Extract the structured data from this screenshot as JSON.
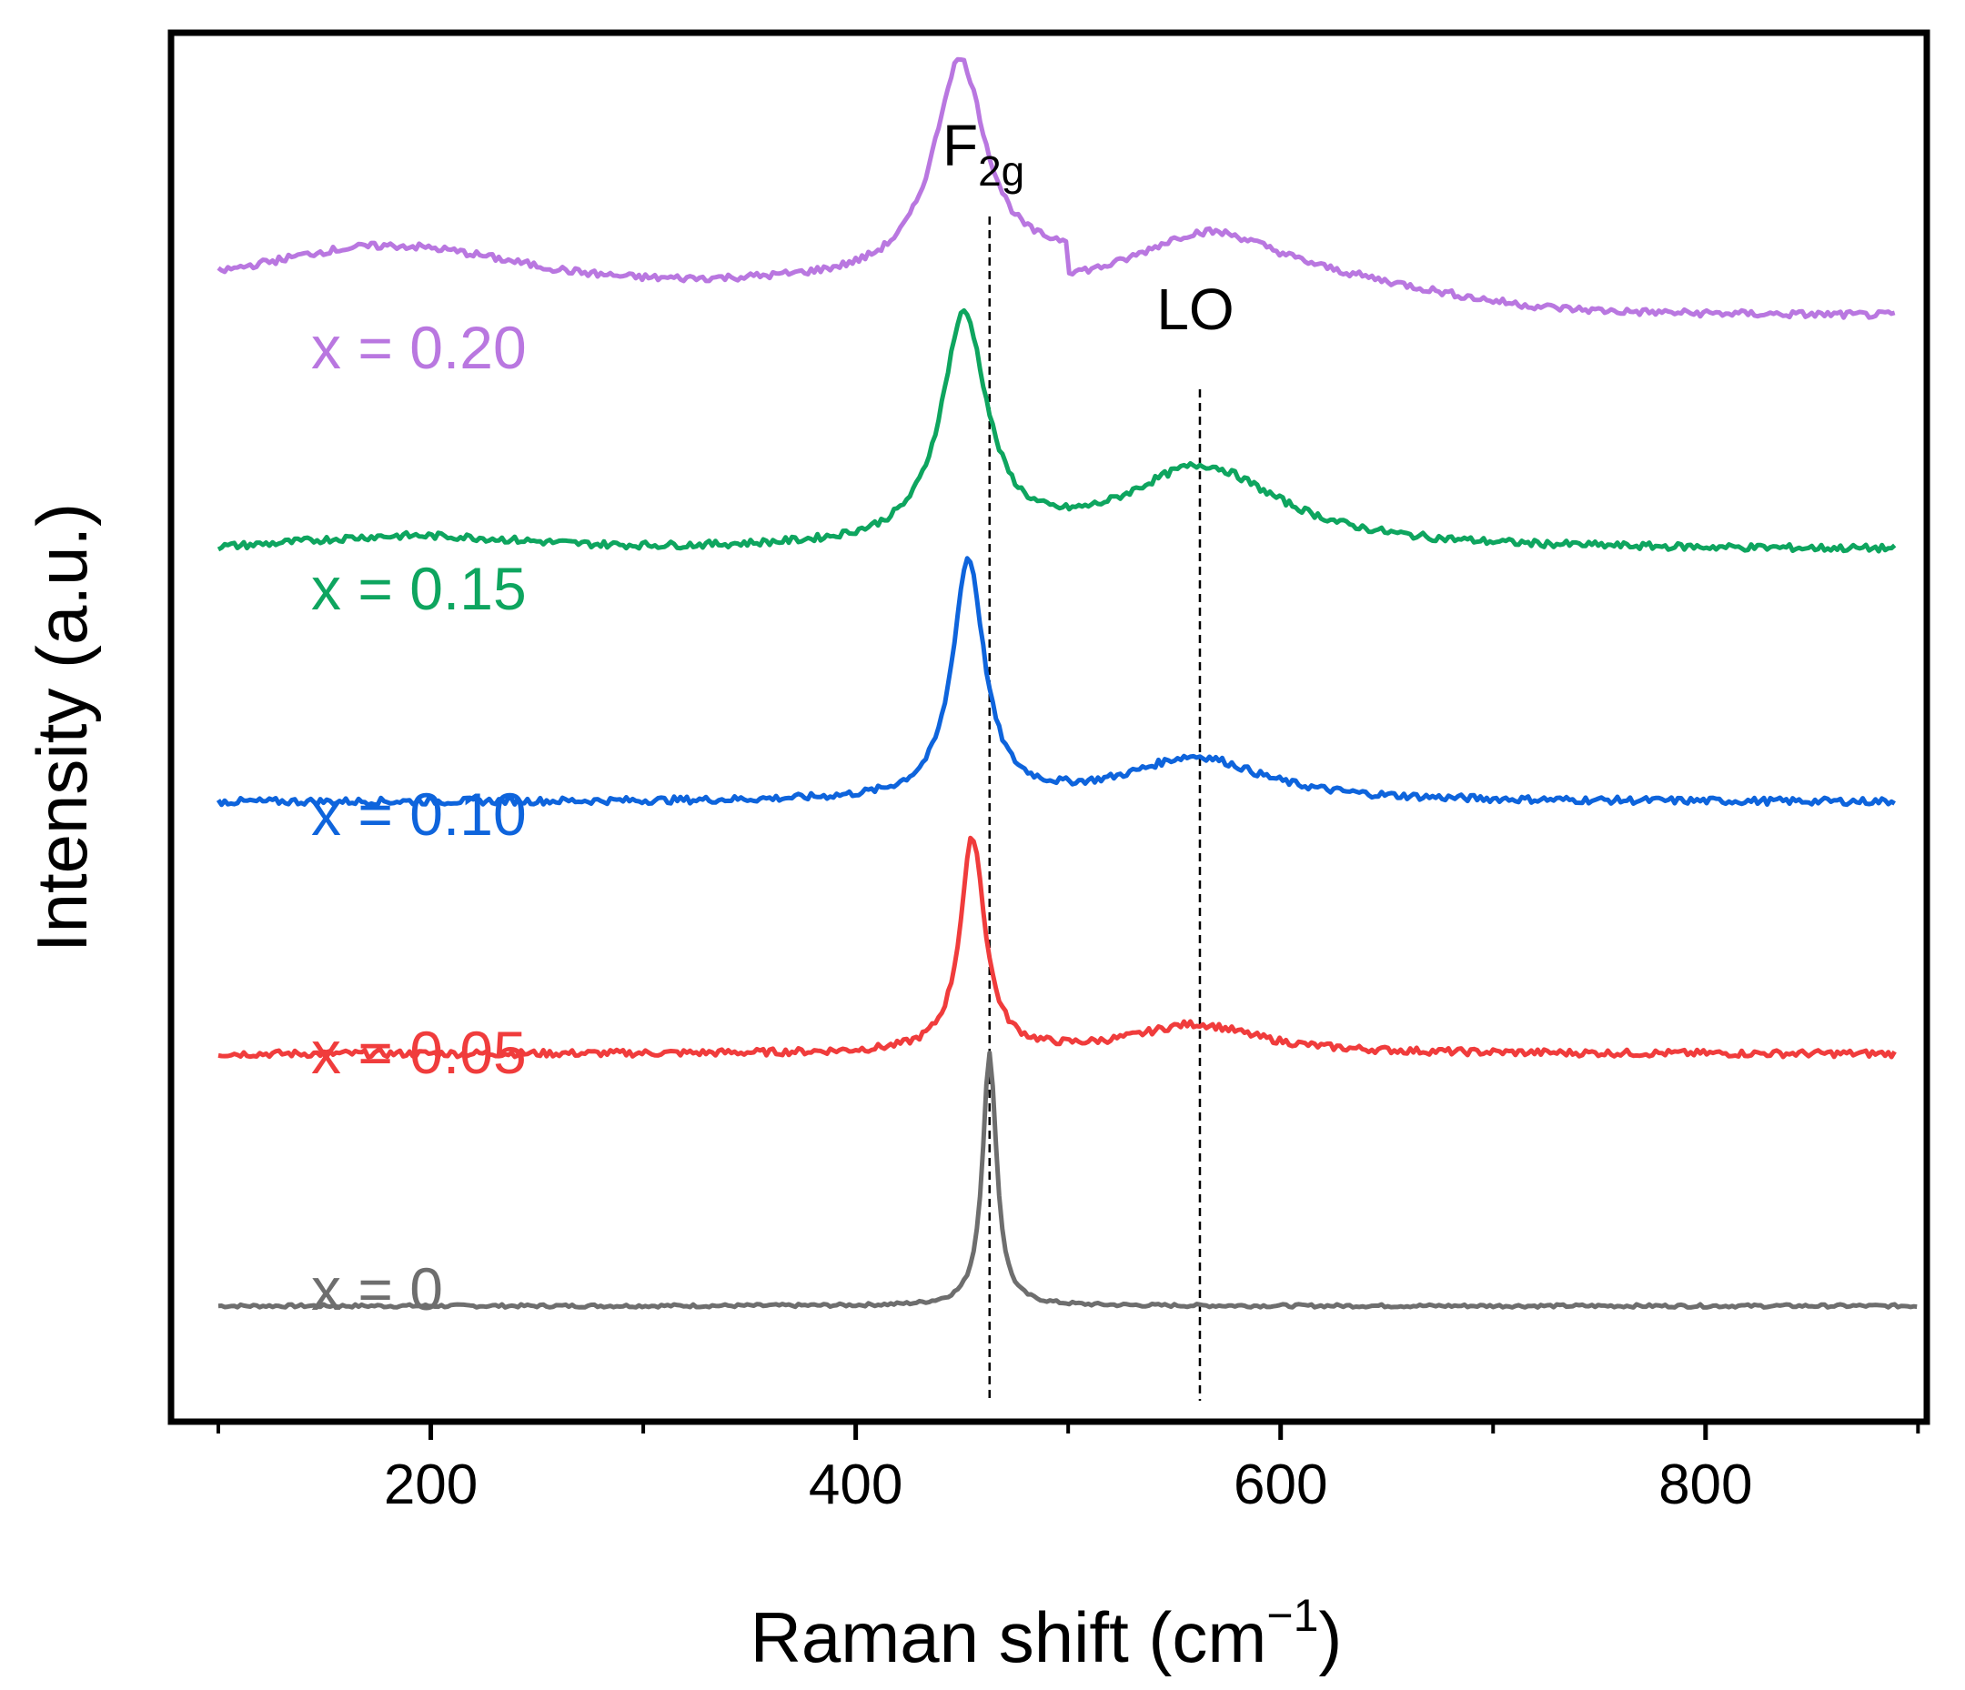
{
  "chart_data": {
    "type": "line",
    "title": "",
    "xlabel": "Raman shift (cm",
    "xlabel_sup": "−1",
    "xlabel_close": ")",
    "ylabel": "Intensity (a.u.)",
    "xlim": [
      90,
      900
    ],
    "ylim": [
      0,
      100
    ],
    "x_ticks": [
      200,
      400,
      600,
      800
    ],
    "x_tick_labels": [
      "200",
      "400",
      "600",
      "800"
    ],
    "x_minor_ticks": [
      100,
      300,
      500,
      700,
      900
    ],
    "y_ticks": [],
    "grid": false,
    "legend": "inline labels at left",
    "series": [
      {
        "name": "x = 0",
        "color": "#6e6e6e",
        "offset": 5,
        "peaks": [
          {
            "center": 463,
            "height": 20,
            "width": 4
          }
        ],
        "values_sampled": {
          "x": [
            110,
            300,
            440,
            455,
            463,
            470,
            490,
            600,
            900
          ],
          "y": [
            5,
            5,
            5.3,
            8,
            25,
            8,
            5.2,
            5,
            5
          ]
        }
      },
      {
        "name": "x = 0.05",
        "color": "#f03c3c",
        "offset": 25,
        "peaks": [
          {
            "center": 455,
            "height": 17,
            "width": 7
          },
          {
            "center": 560,
            "height": 2.3,
            "width": 35
          }
        ],
        "values_sampled": {
          "x": [
            110,
            300,
            430,
            455,
            480,
            510,
            560,
            650,
            890
          ],
          "y": [
            25,
            25,
            26,
            42,
            27,
            25.5,
            27.3,
            25,
            25
          ]
        }
      },
      {
        "name": "x = 0.10",
        "color": "#0e64dc",
        "offset": 45,
        "peaks": [
          {
            "center": 453,
            "height": 19,
            "width": 9
          },
          {
            "center": 560,
            "height": 3.5,
            "width": 38
          }
        ],
        "values_sampled": {
          "x": [
            110,
            300,
            430,
            453,
            480,
            510,
            560,
            650,
            890
          ],
          "y": [
            45,
            45,
            46,
            64,
            47,
            45.5,
            48.5,
            45,
            45
          ]
        }
      },
      {
        "name": "x = 0.15",
        "color": "#0ea55f",
        "offset": 65,
        "peaks": [
          {
            "center": 451,
            "height": 18,
            "width": 13
          },
          {
            "center": 563,
            "height": 6.5,
            "width": 45
          }
        ],
        "values_sampled": {
          "x": [
            110,
            300,
            430,
            451,
            480,
            500,
            563,
            650,
            890
          ],
          "y": [
            65,
            65,
            66.5,
            83,
            68,
            65.5,
            71.5,
            65,
            65
          ]
        }
      },
      {
        "name": "x = 0.20",
        "color": "#b977e0",
        "offset": 85,
        "peaks": [
          {
            "center": 449,
            "height": 17,
            "width": 15
          },
          {
            "center": 565,
            "height": 6.2,
            "width": 50
          }
        ],
        "values_sampled": {
          "x": [
            110,
            300,
            430,
            449,
            480,
            500,
            565,
            650,
            890
          ],
          "y": [
            88,
            88,
            89,
            105,
            90.5,
            88.3,
            94,
            85.5,
            85
          ]
        }
      }
    ],
    "annotations": [
      {
        "text": "F",
        "sub": "2g",
        "x": 463,
        "type": "dashed-vline"
      },
      {
        "text": "LO",
        "x": 562,
        "type": "dashed-vline"
      }
    ]
  }
}
